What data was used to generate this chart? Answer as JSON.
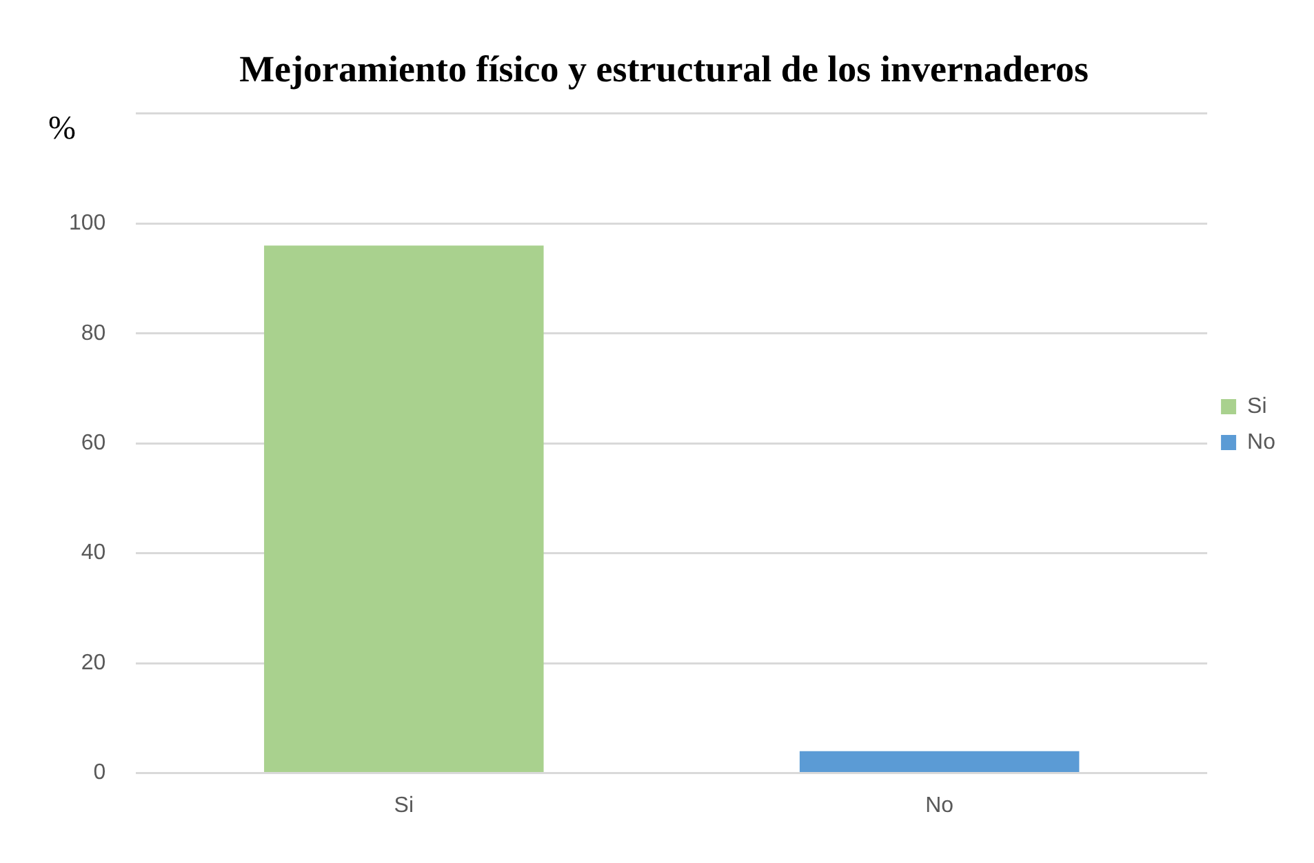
{
  "chart_data": {
    "type": "bar",
    "title": "Mejoramiento físico y estructural de los invernaderos",
    "ylabel": "%",
    "categories": [
      "Si",
      "No"
    ],
    "series": [
      {
        "name": "Si",
        "color": "#a9d18e",
        "values": [
          96,
          null
        ]
      },
      {
        "name": "No",
        "color": "#5b9bd5",
        "values": [
          null,
          4
        ]
      }
    ],
    "ylim": [
      0,
      120
    ],
    "yticks": [
      0,
      20,
      40,
      60,
      80,
      100,
      {
        "value": 120,
        "label": null
      }
    ],
    "grid": "y",
    "legend": "right"
  }
}
